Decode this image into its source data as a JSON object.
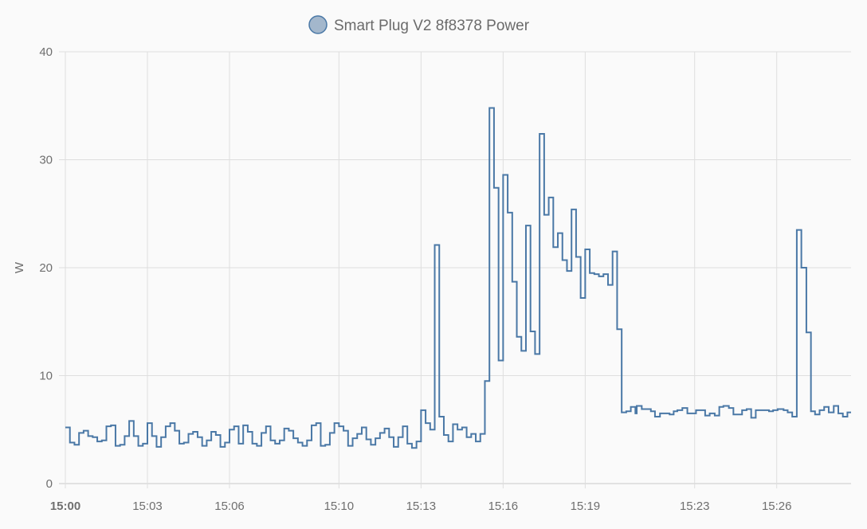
{
  "legend": {
    "label": "Smart Plug V2 8f8378 Power",
    "placement": "top-center"
  },
  "colors": {
    "line": "#4a78a6",
    "legend_fill": "#a3b7cc",
    "grid": "#dedede",
    "axis": "#c8c8c8",
    "background": "#fafafa"
  },
  "chart_data": {
    "type": "line",
    "step": true,
    "title": "",
    "xlabel": "",
    "ylabel": "W",
    "ylim": [
      0,
      40
    ],
    "yticks": [
      "0",
      "10",
      "20",
      "30",
      "40"
    ],
    "xlim": [
      "15:00:00",
      "15:28:43"
    ],
    "xticks": [
      {
        "label": "15:00",
        "time": "15:00:00",
        "bold": true
      },
      {
        "label": "15:03",
        "time": "15:03:00"
      },
      {
        "label": "15:06",
        "time": "15:06:00"
      },
      {
        "label": "15:10",
        "time": "15:10:00"
      },
      {
        "label": "15:13",
        "time": "15:13:00"
      },
      {
        "label": "15:16",
        "time": "15:16:00"
      },
      {
        "label": "15:19",
        "time": "15:19:00"
      },
      {
        "label": "15:23",
        "time": "15:23:00"
      },
      {
        "label": "15:26",
        "time": "15:26:00"
      }
    ],
    "grid": true,
    "series": [
      {
        "name": "Smart Plug V2 8f8378 Power",
        "x": [
          "15:00:00",
          "15:00:10",
          "15:00:20",
          "15:00:30",
          "15:00:40",
          "15:00:50",
          "15:01:00",
          "15:01:10",
          "15:01:20",
          "15:01:30",
          "15:01:40",
          "15:01:50",
          "15:02:00",
          "15:02:10",
          "15:02:20",
          "15:02:30",
          "15:02:40",
          "15:02:50",
          "15:03:00",
          "15:03:10",
          "15:03:20",
          "15:03:30",
          "15:03:40",
          "15:03:50",
          "15:04:00",
          "15:04:10",
          "15:04:20",
          "15:04:30",
          "15:04:40",
          "15:04:50",
          "15:05:00",
          "15:05:10",
          "15:05:20",
          "15:05:30",
          "15:05:40",
          "15:05:50",
          "15:06:00",
          "15:06:10",
          "15:06:20",
          "15:06:30",
          "15:06:40",
          "15:06:50",
          "15:07:00",
          "15:07:10",
          "15:07:20",
          "15:07:30",
          "15:07:40",
          "15:07:50",
          "15:08:00",
          "15:08:10",
          "15:08:20",
          "15:08:30",
          "15:08:40",
          "15:08:50",
          "15:09:00",
          "15:09:10",
          "15:09:20",
          "15:09:30",
          "15:09:40",
          "15:09:50",
          "15:10:00",
          "15:10:10",
          "15:10:20",
          "15:10:30",
          "15:10:40",
          "15:10:50",
          "15:11:00",
          "15:11:10",
          "15:11:20",
          "15:11:30",
          "15:11:40",
          "15:11:50",
          "15:12:00",
          "15:12:10",
          "15:12:20",
          "15:12:30",
          "15:12:40",
          "15:12:50",
          "15:13:00",
          "15:13:10",
          "15:13:20",
          "15:13:30",
          "15:13:40",
          "15:13:50",
          "15:14:00",
          "15:14:10",
          "15:14:20",
          "15:14:30",
          "15:14:40",
          "15:14:50",
          "15:15:00",
          "15:15:10",
          "15:15:20",
          "15:15:30",
          "15:15:40",
          "15:15:50",
          "15:16:00",
          "15:16:10",
          "15:16:20",
          "15:16:30",
          "15:16:40",
          "15:16:50",
          "15:17:00",
          "15:17:10",
          "15:17:20",
          "15:17:30",
          "15:17:40",
          "15:17:50",
          "15:18:00",
          "15:18:10",
          "15:18:20",
          "15:18:30",
          "15:18:40",
          "15:18:50",
          "15:19:00",
          "15:19:10",
          "15:19:20",
          "15:19:30",
          "15:19:40",
          "15:19:50",
          "15:20:00",
          "15:20:10",
          "15:20:20",
          "15:20:30",
          "15:20:40",
          "15:20:50",
          "15:20:53",
          "15:21:04",
          "15:21:24",
          "15:21:33",
          "15:21:44",
          "15:21:53",
          "15:22:05",
          "15:22:14",
          "15:22:22",
          "15:22:33",
          "15:22:44",
          "15:23:03",
          "15:23:23",
          "15:23:33",
          "15:23:44",
          "15:23:54",
          "15:24:03",
          "15:24:15",
          "15:24:25",
          "15:24:44",
          "15:24:54",
          "15:25:04",
          "15:25:14",
          "15:25:43",
          "15:25:52",
          "15:26:02",
          "15:26:15",
          "15:26:24",
          "15:26:34",
          "15:26:44",
          "15:26:54",
          "15:27:05",
          "15:27:15",
          "15:27:24",
          "15:27:34",
          "15:27:44",
          "15:27:54",
          "15:28:05",
          "15:28:15",
          "15:28:25",
          "15:28:35"
        ],
        "y": [
          5.2,
          3.8,
          3.6,
          4.7,
          4.9,
          4.4,
          4.3,
          3.9,
          4.0,
          5.3,
          5.4,
          3.5,
          3.6,
          4.4,
          5.8,
          4.4,
          3.5,
          3.7,
          5.6,
          4.4,
          3.4,
          4.3,
          5.3,
          5.6,
          4.9,
          3.7,
          3.8,
          4.6,
          4.8,
          4.3,
          3.5,
          4.0,
          4.8,
          4.5,
          3.4,
          3.8,
          5.0,
          5.3,
          3.7,
          5.4,
          4.8,
          3.7,
          3.5,
          4.7,
          5.3,
          4.0,
          3.7,
          4.0,
          5.1,
          4.9,
          4.2,
          3.8,
          3.5,
          4.0,
          5.4,
          5.6,
          3.5,
          3.6,
          4.7,
          5.6,
          5.3,
          4.9,
          3.5,
          4.2,
          4.6,
          5.2,
          4.1,
          3.6,
          4.2,
          4.7,
          5.1,
          4.3,
          3.4,
          4.3,
          5.3,
          3.7,
          3.3,
          3.9,
          6.8,
          5.6,
          5.0,
          22.1,
          6.2,
          4.5,
          3.9,
          5.5,
          5.0,
          5.2,
          4.3,
          4.6,
          3.9,
          4.6,
          9.5,
          34.8,
          27.4,
          11.4,
          28.6,
          25.1,
          18.7,
          13.6,
          12.3,
          23.9,
          14.1,
          12.0,
          32.4,
          24.9,
          26.5,
          21.9,
          23.2,
          20.7,
          19.7,
          25.4,
          21.0,
          17.2,
          21.7,
          19.5,
          19.4,
          19.2,
          19.4,
          18.4,
          21.5,
          14.3,
          6.6,
          6.7,
          7.1,
          6.5,
          7.2,
          6.9,
          6.7,
          6.2,
          6.5,
          6.5,
          6.4,
          6.7,
          6.8,
          7.0,
          6.5,
          6.8,
          6.3,
          6.5,
          6.3,
          7.1,
          7.2,
          7.0,
          6.4,
          6.8,
          6.9,
          6.1,
          6.8,
          6.7,
          6.8,
          6.9,
          6.8,
          6.6,
          6.2,
          23.5,
          20.0,
          14.0,
          6.7,
          6.4,
          6.8,
          7.1,
          6.6,
          7.2,
          6.5,
          6.2,
          6.6
        ]
      }
    ]
  }
}
